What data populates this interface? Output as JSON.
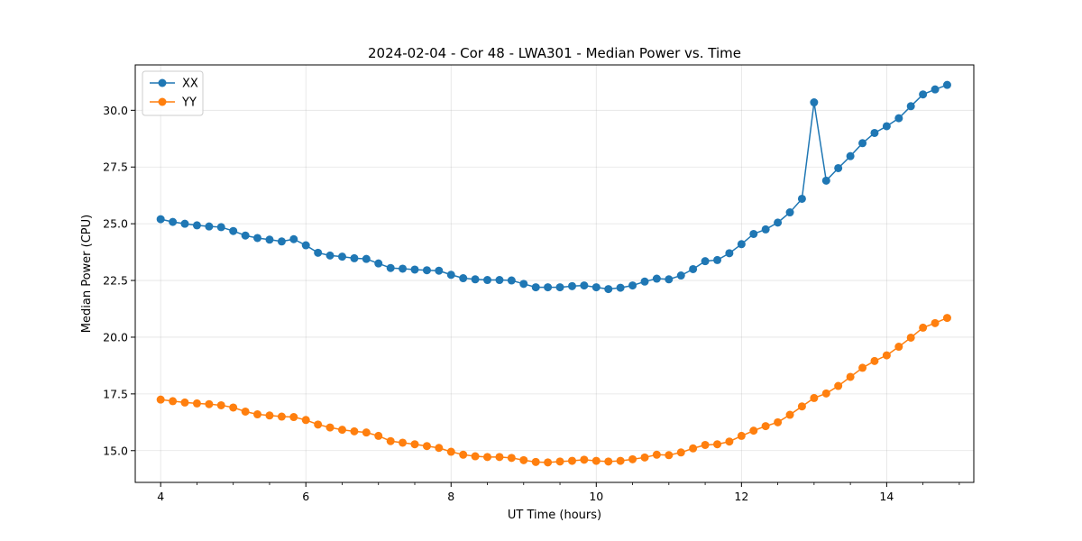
{
  "chart_data": {
    "type": "line",
    "title": "2024-02-04 - Cor 48 - LWA301 - Median Power vs. Time",
    "xlabel": "UT Time (hours)",
    "ylabel": "Median Power (CPU)",
    "xlim": [
      3.65,
      15.2
    ],
    "ylim": [
      13.6,
      32.0
    ],
    "grid": true,
    "legend_position": "top-left",
    "x_ticks": [
      4,
      6,
      8,
      10,
      12,
      14
    ],
    "x_tick_labels": [
      "4",
      "6",
      "8",
      "10",
      "12",
      "14"
    ],
    "x_minor_ticks": [
      4.5,
      5,
      5.5,
      6.5,
      7,
      7.5,
      8.5,
      9,
      9.5,
      10.5,
      11,
      11.5,
      12.5,
      13,
      13.5,
      14.5,
      15
    ],
    "y_ticks": [
      15.0,
      17.5,
      20.0,
      22.5,
      25.0,
      27.5,
      30.0
    ],
    "y_tick_labels": [
      "15.0",
      "17.5",
      "20.0",
      "22.5",
      "25.0",
      "27.5",
      "30.0"
    ],
    "x": [
      4.0,
      4.167,
      4.333,
      4.5,
      4.667,
      4.833,
      5.0,
      5.167,
      5.333,
      5.5,
      5.667,
      5.833,
      6.0,
      6.167,
      6.333,
      6.5,
      6.667,
      6.833,
      7.0,
      7.167,
      7.333,
      7.5,
      7.667,
      7.833,
      8.0,
      8.167,
      8.333,
      8.5,
      8.667,
      8.833,
      9.0,
      9.167,
      9.333,
      9.5,
      9.667,
      9.833,
      10.0,
      10.167,
      10.333,
      10.5,
      10.667,
      10.833,
      11.0,
      11.167,
      11.333,
      11.5,
      11.667,
      11.833,
      12.0,
      12.167,
      12.333,
      12.5,
      12.667,
      12.833,
      13.0,
      13.167,
      13.333,
      13.5,
      13.667,
      13.833,
      14.0,
      14.167,
      14.333,
      14.5,
      14.667,
      14.833
    ],
    "series": [
      {
        "name": "XX",
        "color": "#1f77b4",
        "values": [
          25.2,
          25.08,
          25.0,
          24.93,
          24.88,
          24.85,
          24.68,
          24.48,
          24.37,
          24.3,
          24.22,
          24.32,
          24.05,
          23.72,
          23.6,
          23.55,
          23.48,
          23.45,
          23.25,
          23.05,
          23.02,
          22.98,
          22.95,
          22.93,
          22.75,
          22.6,
          22.55,
          22.52,
          22.52,
          22.5,
          22.35,
          22.2,
          22.2,
          22.2,
          22.25,
          22.28,
          22.2,
          22.12,
          22.18,
          22.28,
          22.45,
          22.58,
          22.55,
          22.72,
          23.0,
          23.35,
          23.4,
          23.7,
          24.1,
          24.55,
          24.75,
          25.05,
          25.5,
          26.1,
          30.35,
          26.9,
          27.45,
          27.98,
          28.55,
          29.0,
          29.3,
          29.65,
          30.18,
          30.7,
          30.92,
          31.12
        ]
      },
      {
        "name": "YY",
        "color": "#ff7f0e",
        "values": [
          17.25,
          17.18,
          17.12,
          17.08,
          17.05,
          17.0,
          16.9,
          16.72,
          16.6,
          16.55,
          16.5,
          16.48,
          16.35,
          16.15,
          16.02,
          15.92,
          15.85,
          15.8,
          15.65,
          15.42,
          15.35,
          15.28,
          15.2,
          15.12,
          14.95,
          14.82,
          14.75,
          14.72,
          14.72,
          14.68,
          14.58,
          14.5,
          14.48,
          14.52,
          14.55,
          14.6,
          14.55,
          14.52,
          14.55,
          14.62,
          14.7,
          14.82,
          14.8,
          14.92,
          15.1,
          15.25,
          15.28,
          15.4,
          15.65,
          15.88,
          16.08,
          16.25,
          16.58,
          16.95,
          17.32,
          17.52,
          17.85,
          18.25,
          18.65,
          18.95,
          19.2,
          19.58,
          19.98,
          20.42,
          20.62,
          20.85
        ]
      }
    ]
  }
}
